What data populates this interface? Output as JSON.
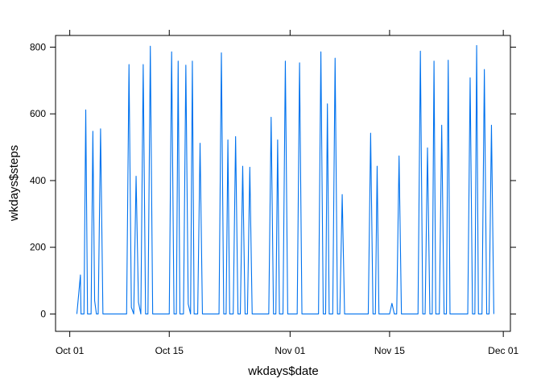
{
  "chart_data": {
    "type": "line",
    "title": "",
    "xlabel": "wkdays$date",
    "ylabel": "wkdays$steps",
    "line_color": "#0072EE",
    "grid": false,
    "legend": "none",
    "x_axis": {
      "type": "date",
      "range": [
        "2012-09-29",
        "2012-12-02"
      ],
      "ticks": [
        {
          "date": "2012-10-01",
          "label": "Oct 01"
        },
        {
          "date": "2012-10-15",
          "label": "Oct 15"
        },
        {
          "date": "2012-11-01",
          "label": "Nov 01"
        },
        {
          "date": "2012-11-15",
          "label": "Nov 15"
        },
        {
          "date": "2012-12-01",
          "label": "Dec 01"
        }
      ]
    },
    "y_axis": {
      "range": [
        -52,
        835
      ],
      "ticks": [
        0,
        200,
        400,
        600,
        800
      ],
      "tick_labels": [
        "0",
        "200",
        "400",
        "600",
        "800"
      ]
    },
    "series": [
      {
        "x": [
          "2012-10-02T00:00",
          "2012-10-02T12:00",
          "2012-10-02T14:00",
          "2012-10-03T00:00",
          "2012-10-03T06:00",
          "2012-10-03T12:00",
          "2012-10-03T18:00",
          "2012-10-04T00:00",
          "2012-10-04T06:00",
          "2012-10-04T12:00",
          "2012-10-04T18:00",
          "2012-10-05T00:00",
          "2012-10-05T08:00",
          "2012-10-05T16:00",
          "2012-10-09T00:00",
          "2012-10-09T08:00",
          "2012-10-09T16:00",
          "2012-10-10T00:00",
          "2012-10-10T08:00",
          "2012-10-10T16:00",
          "2012-10-11T00:00",
          "2012-10-11T08:00",
          "2012-10-11T16:00",
          "2012-10-12T00:00",
          "2012-10-12T08:00",
          "2012-10-12T16:00",
          "2012-10-15T00:00",
          "2012-10-15T08:00",
          "2012-10-15T16:00",
          "2012-10-16T00:00",
          "2012-10-16T06:00",
          "2012-10-16T12:00",
          "2012-10-16T18:00",
          "2012-10-17T00:00",
          "2012-10-17T08:00",
          "2012-10-17T16:00",
          "2012-10-18T00:00",
          "2012-10-18T06:00",
          "2012-10-18T12:00",
          "2012-10-18T18:00",
          "2012-10-19T00:00",
          "2012-10-19T08:00",
          "2012-10-19T16:00",
          "2012-10-22T00:00",
          "2012-10-22T08:00",
          "2012-10-22T16:00",
          "2012-10-23T00:00",
          "2012-10-23T06:00",
          "2012-10-23T12:00",
          "2012-10-23T18:00",
          "2012-10-24T00:00",
          "2012-10-24T08:00",
          "2012-10-24T16:00",
          "2012-10-25T00:00",
          "2012-10-25T08:00",
          "2012-10-25T16:00",
          "2012-10-26T00:00",
          "2012-10-26T08:00",
          "2012-10-26T16:00",
          "2012-10-29T00:00",
          "2012-10-29T08:00",
          "2012-10-29T16:00",
          "2012-10-30T00:00",
          "2012-10-30T06:00",
          "2012-10-30T12:00",
          "2012-10-30T18:00",
          "2012-10-31T00:00",
          "2012-10-31T08:00",
          "2012-10-31T16:00",
          "2012-11-01T00:00",
          "2012-11-01T08:00",
          "2012-11-01T16:00",
          "2012-11-02T00:00",
          "2012-11-02T08:00",
          "2012-11-02T16:00",
          "2012-11-05T00:00",
          "2012-11-05T08:00",
          "2012-11-05T16:00",
          "2012-11-06T00:00",
          "2012-11-06T06:00",
          "2012-11-06T12:00",
          "2012-11-06T18:00",
          "2012-11-07T00:00",
          "2012-11-07T08:00",
          "2012-11-07T16:00",
          "2012-11-08T00:00",
          "2012-11-08T08:00",
          "2012-11-08T16:00",
          "2012-11-09T00:00",
          "2012-11-09T08:00",
          "2012-11-09T16:00",
          "2012-11-12T00:00",
          "2012-11-12T08:00",
          "2012-11-12T16:00",
          "2012-11-13T00:00",
          "2012-11-13T06:00",
          "2012-11-13T12:00",
          "2012-11-13T18:00",
          "2012-11-14T00:00",
          "2012-11-14T08:00",
          "2012-11-14T16:00",
          "2012-11-15T00:00",
          "2012-11-15T08:00",
          "2012-11-15T16:00",
          "2012-11-16T00:00",
          "2012-11-16T08:00",
          "2012-11-16T16:00",
          "2012-11-19T00:00",
          "2012-11-19T08:00",
          "2012-11-19T16:00",
          "2012-11-20T00:00",
          "2012-11-20T08:00",
          "2012-11-20T16:00",
          "2012-11-21T00:00",
          "2012-11-21T06:00",
          "2012-11-21T12:00",
          "2012-11-21T18:00",
          "2012-11-22T00:00",
          "2012-11-22T08:00",
          "2012-11-22T16:00",
          "2012-11-23T00:00",
          "2012-11-23T06:00",
          "2012-11-23T12:00",
          "2012-11-23T18:00",
          "2012-11-26T00:00",
          "2012-11-26T08:00",
          "2012-11-26T16:00",
          "2012-11-27T00:00",
          "2012-11-27T06:00",
          "2012-11-27T12:00",
          "2012-11-27T18:00",
          "2012-11-28T00:00",
          "2012-11-28T08:00",
          "2012-11-28T16:00",
          "2012-11-29T00:00",
          "2012-11-29T08:00",
          "2012-11-29T16:00"
        ],
        "y": [
          0,
          117,
          0,
          0,
          612,
          0,
          0,
          0,
          548,
          40,
          0,
          0,
          555,
          0,
          0,
          748,
          20,
          0,
          413,
          35,
          0,
          748,
          0,
          0,
          803,
          0,
          0,
          786,
          0,
          0,
          758,
          0,
          0,
          0,
          746,
          30,
          0,
          758,
          0,
          0,
          0,
          512,
          0,
          0,
          783,
          0,
          0,
          522,
          0,
          0,
          0,
          532,
          0,
          0,
          443,
          0,
          0,
          440,
          0,
          0,
          590,
          0,
          0,
          522,
          0,
          0,
          0,
          758,
          0,
          0,
          0,
          0,
          0,
          753,
          0,
          0,
          786,
          0,
          0,
          630,
          0,
          0,
          0,
          767,
          0,
          0,
          358,
          0,
          0,
          0,
          0,
          0,
          542,
          0,
          0,
          443,
          0,
          0,
          0,
          0,
          0,
          0,
          32,
          0,
          0,
          474,
          0,
          0,
          788,
          0,
          0,
          498,
          0,
          0,
          758,
          0,
          0,
          0,
          566,
          0,
          0,
          761,
          0,
          0,
          0,
          708,
          0,
          0,
          805,
          0,
          0,
          0,
          733,
          0,
          0,
          566,
          0
        ]
      }
    ]
  }
}
